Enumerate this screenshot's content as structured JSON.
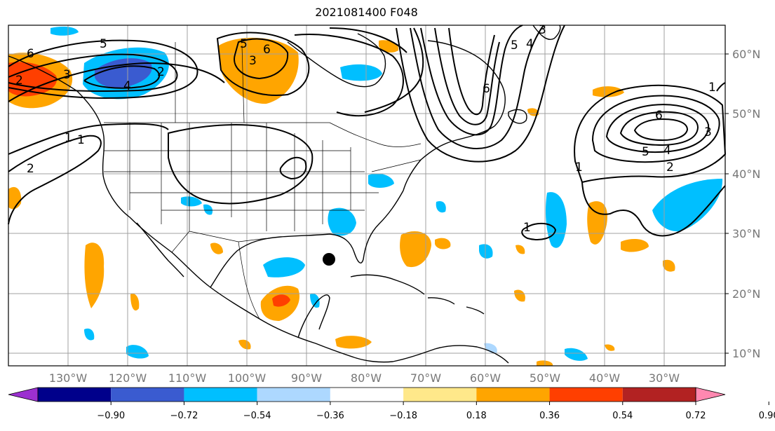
{
  "title": "2021081400 F048",
  "map": {
    "projection": "PlateCarree",
    "lon_range": [
      -140,
      -16
    ],
    "lat_range": [
      8,
      65
    ],
    "gridlines": true,
    "lat_labels": [
      "60°N",
      "50°N",
      "40°N",
      "30°N",
      "20°N",
      "10°N"
    ],
    "lon_labels": [
      "130°W",
      "120°W",
      "110°W",
      "100°W",
      "90°W",
      "80°W",
      "70°W",
      "60°W",
      "50°W",
      "40°W",
      "30°W"
    ],
    "storm_marker": {
      "lon": -86,
      "lat": 26,
      "color": "#000000"
    },
    "contour_labels": [
      "6",
      "5",
      "4",
      "3",
      "2",
      "1",
      "5",
      "6",
      "3",
      "2",
      "1",
      "2",
      "1",
      "5",
      "4",
      "3",
      "6",
      "6",
      "5",
      "4",
      "3",
      "2",
      "1",
      "1"
    ]
  },
  "colorbar": {
    "ticks": [
      "−0.90",
      "−0.72",
      "−0.54",
      "−0.36",
      "−0.18",
      "0.18",
      "0.36",
      "0.54",
      "0.72",
      "0.90"
    ],
    "colors": [
      "#9b30d0",
      "#00008b",
      "#3a5bd0",
      "#00bfff",
      "#add8ff",
      "#ffffff",
      "#ffe88a",
      "#ffa500",
      "#ff3f00",
      "#b22222",
      "#ff88b0"
    ],
    "extend": "both"
  }
}
